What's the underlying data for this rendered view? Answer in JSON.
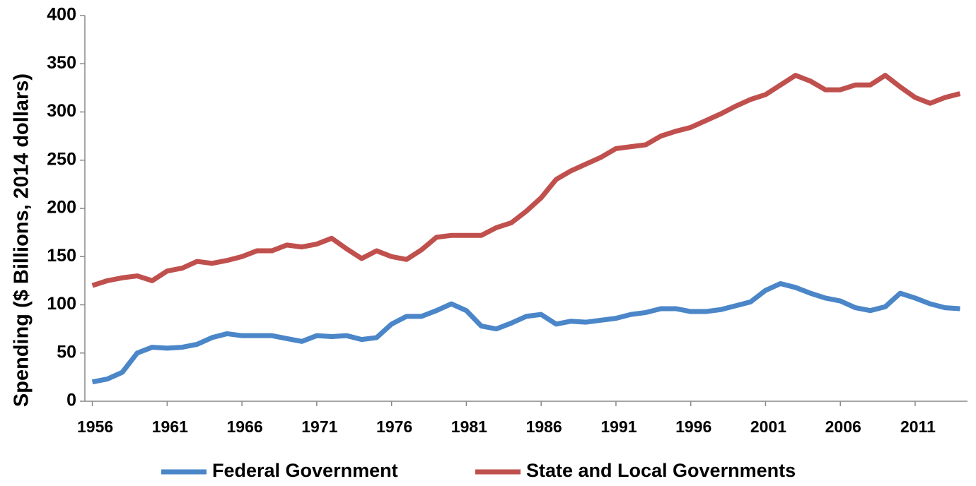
{
  "chart_data": {
    "type": "line",
    "y_label": "Spending ($ Billions, 2014 dollars)",
    "x": [
      1956,
      1957,
      1958,
      1959,
      1960,
      1961,
      1962,
      1963,
      1964,
      1965,
      1966,
      1967,
      1968,
      1969,
      1970,
      1971,
      1972,
      1973,
      1974,
      1975,
      1976,
      1977,
      1978,
      1979,
      1980,
      1981,
      1982,
      1983,
      1984,
      1985,
      1986,
      1987,
      1988,
      1989,
      1990,
      1991,
      1992,
      1993,
      1994,
      1995,
      1996,
      1997,
      1998,
      1999,
      2000,
      2001,
      2002,
      2003,
      2004,
      2005,
      2006,
      2007,
      2008,
      2009,
      2010,
      2011,
      2012,
      2013,
      2014
    ],
    "series": [
      {
        "name": "Federal Government",
        "color": "#4a86c8",
        "values": [
          20,
          23,
          30,
          50,
          56,
          55,
          56,
          59,
          66,
          70,
          68,
          68,
          68,
          65,
          62,
          68,
          67,
          68,
          64,
          66,
          80,
          88,
          88,
          94,
          101,
          94,
          78,
          75,
          81,
          88,
          90,
          80,
          83,
          82,
          84,
          86,
          90,
          92,
          96,
          96,
          93,
          93,
          95,
          99,
          103,
          115,
          122,
          118,
          112,
          107,
          104,
          97,
          94,
          98,
          112,
          107,
          101,
          97,
          96
        ]
      },
      {
        "name": "State and Local Governments",
        "color": "#c0504d",
        "values": [
          120,
          125,
          128,
          130,
          125,
          135,
          138,
          145,
          143,
          146,
          150,
          156,
          156,
          162,
          160,
          163,
          169,
          158,
          148,
          156,
          150,
          147,
          157,
          170,
          172,
          172,
          172,
          180,
          185,
          197,
          211,
          230,
          239,
          246,
          253,
          262,
          264,
          266,
          275,
          280,
          284,
          291,
          298,
          306,
          313,
          318,
          328,
          338,
          332,
          323,
          323,
          328,
          328,
          338,
          326,
          315,
          309,
          315,
          319
        ]
      }
    ],
    "xlim": [
      1955.5,
      2014.5
    ],
    "xticks": [
      1956,
      1961,
      1966,
      1971,
      1976,
      1981,
      1986,
      1991,
      1996,
      2001,
      2006,
      2011
    ],
    "ylim": [
      0,
      400
    ],
    "yticks": [
      0,
      50,
      100,
      150,
      200,
      250,
      300,
      350,
      400
    ],
    "legend": "bottom"
  }
}
